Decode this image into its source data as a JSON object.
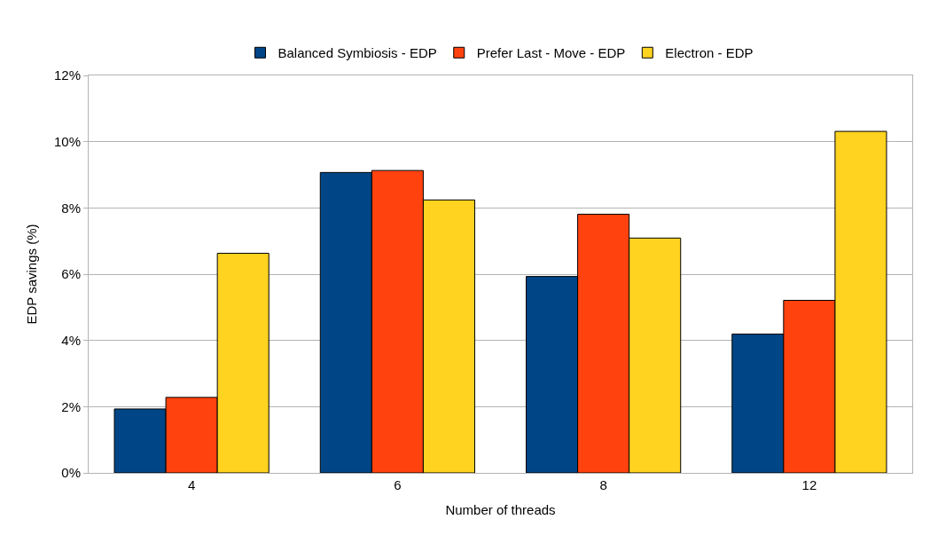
{
  "chart_data": {
    "type": "bar",
    "xlabel": "Number of threads",
    "ylabel": "EDP savings (%)",
    "categories": [
      "4",
      "6",
      "8",
      "12"
    ],
    "series": [
      {
        "name": "Balanced Symbiosis - EDP",
        "color": "#004586",
        "values": [
          1.93,
          9.07,
          5.93,
          4.19
        ]
      },
      {
        "name": "Prefer Last - Move - EDP",
        "color": "#ff420e",
        "values": [
          2.28,
          9.13,
          7.81,
          5.21
        ]
      },
      {
        "name": "Electron - EDP",
        "color": "#ffd320",
        "values": [
          6.63,
          8.24,
          7.09,
          10.31
        ]
      }
    ],
    "ylim": [
      0,
      12
    ],
    "yticks": [
      {
        "value": 0,
        "label": "0%"
      },
      {
        "value": 2,
        "label": "2%"
      },
      {
        "value": 4,
        "label": "4%"
      },
      {
        "value": 6,
        "label": "6%"
      },
      {
        "value": 8,
        "label": "8%"
      },
      {
        "value": 10,
        "label": "10%"
      },
      {
        "value": 12,
        "label": "12%"
      }
    ],
    "grid": "y",
    "legend": "top"
  }
}
